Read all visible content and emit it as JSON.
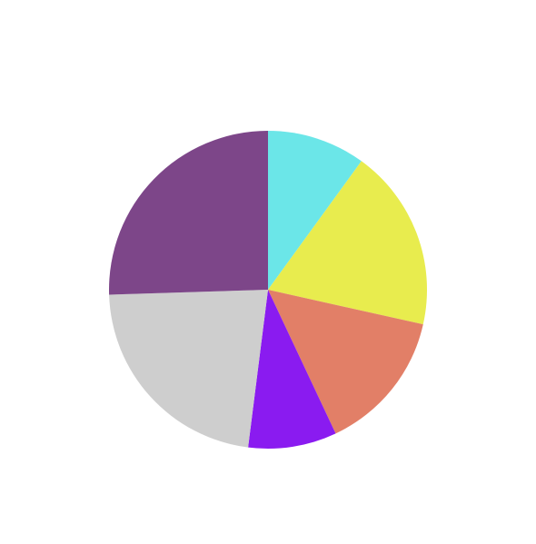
{
  "chart_data": {
    "type": "pie",
    "start_angle": "12 o'clock",
    "direction": "clockwise",
    "slices": [
      {
        "value": 10.0,
        "color": "#6BE6E8"
      },
      {
        "value": 18.5,
        "color": "#E8EC4E"
      },
      {
        "value": 14.5,
        "color": "#E27F67"
      },
      {
        "value": 9.0,
        "color": "#8A1BF0"
      },
      {
        "value": 22.5,
        "color": "#CECECE"
      },
      {
        "value": 25.5,
        "color": "#7D4689"
      }
    ]
  }
}
